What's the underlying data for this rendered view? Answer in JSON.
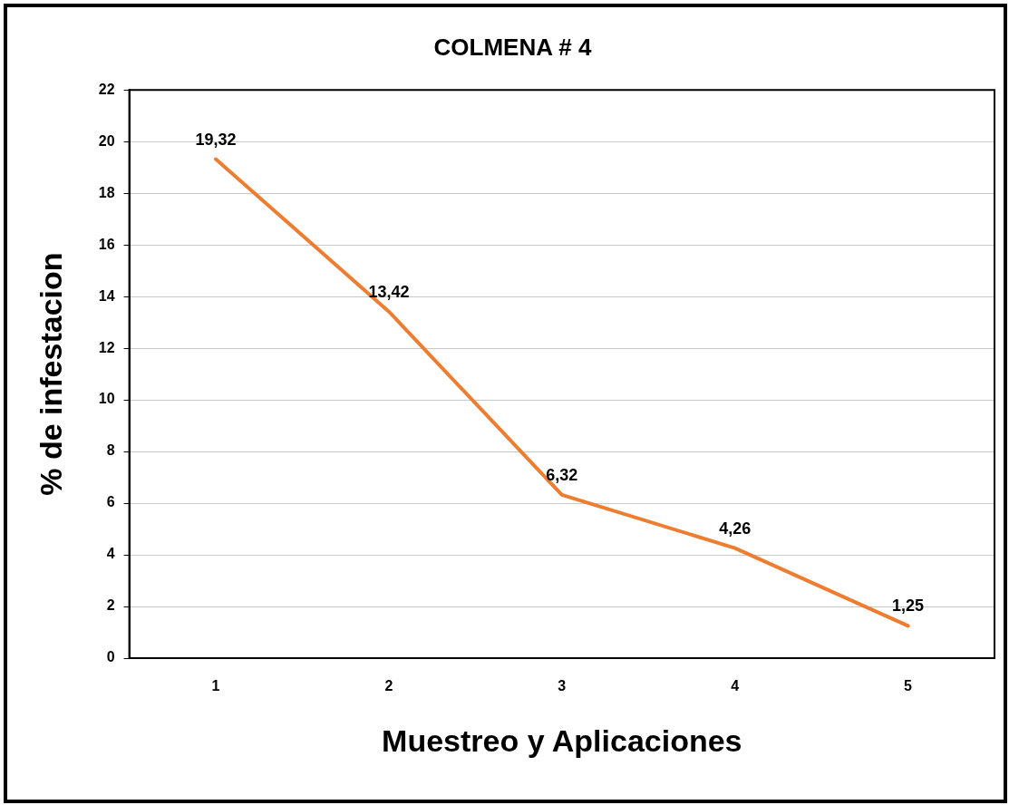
{
  "chart_data": {
    "type": "line",
    "title": "COLMENA # 4",
    "xlabel": "Muestreo y Aplicaciones",
    "ylabel": "% de infestacion",
    "categories": [
      "1",
      "2",
      "3",
      "4",
      "5"
    ],
    "series": [
      {
        "color": "#ed7d31",
        "values": [
          19.32,
          13.42,
          6.32,
          4.26,
          1.25
        ],
        "value_labels": [
          "19,32",
          "13,42",
          "6,32",
          "4,26",
          "1,25"
        ]
      }
    ],
    "ylim": [
      0,
      22
    ],
    "yticks": [
      0,
      2,
      4,
      6,
      8,
      10,
      12,
      14,
      16,
      18,
      20,
      22
    ],
    "grid": "y",
    "legend": false,
    "marker": "none",
    "line_style": "solid"
  }
}
